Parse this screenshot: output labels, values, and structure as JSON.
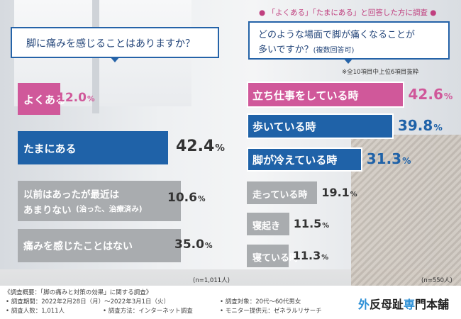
{
  "left_question": "脚に痛みを感じることはありますか？",
  "right_question_line1": "どのような場面で脚が痛くなることが",
  "right_question_line2": "多いですか？",
  "right_question_suffix": "(複数回答可)",
  "survey_tag": "「よくある」「たまにある」と回答した方に調査",
  "top_note": "※全10項目中上位6項目抜粋",
  "colors": {
    "pink": "#d0589a",
    "blue": "#1f62a8",
    "gray": "#a9acaf",
    "border": "#2563a8"
  },
  "chart_data": [
    {
      "type": "bar",
      "orientation": "horizontal",
      "title": "脚に痛みを感じることはありますか？",
      "n_label": "(n=1,011人)",
      "categories": [
        "よくある",
        "たまにある",
        "以前はあったが最近はあまりない（治った、治療済み）",
        "痛みを感じたことはない"
      ],
      "values": [
        12.0,
        42.4,
        10.6,
        35.0
      ],
      "unit": "%",
      "labels": [
        {
          "line1": "よくある",
          "num": "12.0",
          "unit": "%"
        },
        {
          "line1": "たまにある",
          "num": "42.4",
          "unit": "%"
        },
        {
          "line1": "以前はあったが最近は",
          "line2": "あまりない",
          "line2b": "(治った、治療済み)",
          "num": "10.6",
          "unit": "%"
        },
        {
          "line1": "痛みを感じたことはない",
          "num": "35.0",
          "unit": "%"
        }
      ]
    },
    {
      "type": "bar",
      "orientation": "horizontal",
      "title": "どのような場面で脚が痛くなることが多いですか？(複数回答可)",
      "n_label": "(n=550人)",
      "categories": [
        "立ち仕事をしている時",
        "歩いている時",
        "脚が冷えている時",
        "走っている時",
        "寝起き",
        "寝ている時"
      ],
      "values": [
        42.6,
        39.8,
        31.3,
        19.1,
        11.5,
        11.3
      ],
      "unit": "%",
      "labels": [
        {
          "line1": "立ち仕事をしている時",
          "num": "42.6",
          "unit": "%"
        },
        {
          "line1": "歩いている時",
          "num": "39.8",
          "unit": "%"
        },
        {
          "line1": "脚が冷えている時",
          "num": "31.3",
          "unit": "%"
        },
        {
          "line1": "走っている時",
          "num": "19.1",
          "unit": "%"
        },
        {
          "line1": "寝起き",
          "num": "11.5",
          "unit": "%"
        },
        {
          "line1": "寝ている時",
          "num": "11.3",
          "unit": "%"
        }
      ]
    }
  ],
  "footer": {
    "overview": "《調査概要：「脚の痛みと対策の効果」に関する調査》",
    "period": "• 調査期間：2022年2月28日（月）〜2022年3月1日（火）",
    "people": "• 調査人数：1,011人",
    "method": "• 調査方法：インターネット調査",
    "target": "• 調査対象：20代〜60代男女",
    "provider": "• モニター提供元：ゼネラルリサーチ"
  },
  "brand": {
    "part1": "外",
    "part2": "反母趾",
    "part3": "専",
    "part4": "門本舗"
  }
}
